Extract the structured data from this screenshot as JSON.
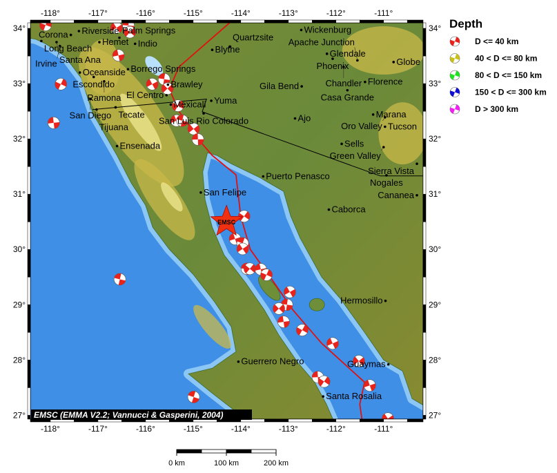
{
  "map": {
    "lon_range": [
      -118.42,
      -110.17
    ],
    "lat_range": [
      26.93,
      34.1
    ],
    "lon_ticks": [
      "-118°",
      "-117°",
      "-116°",
      "-115°",
      "-114°",
      "-113°",
      "-112°",
      "-111°"
    ],
    "lon_tick_values": [
      -118,
      -117,
      -116,
      -115,
      -114,
      -113,
      -112,
      -111
    ],
    "lat_ticks": [
      "34°",
      "33°",
      "32°",
      "31°",
      "30°",
      "29°",
      "28°",
      "27°"
    ],
    "lat_tick_values": [
      34,
      33,
      32,
      31,
      30,
      29,
      28,
      27
    ],
    "colors": {
      "deep_sea": "#3f8fe6",
      "shelf": "#8cc6f5",
      "land": "#6f8e3a",
      "highland": "#c9b84a",
      "peak": "#f0e890",
      "quake": "#e8231c",
      "star": "#f03010"
    },
    "credit": "EMSC (EMMA V2.2; Vannucci & Gasperini, 2004)",
    "event_label": "EMSC",
    "event": {
      "lon": -114.3,
      "lat": 30.5
    }
  },
  "cities": [
    {
      "name": "Riverside",
      "lon": -117.4,
      "lat": 33.95
    },
    {
      "name": "Corona",
      "lon": -117.57,
      "lat": 33.88
    },
    {
      "name": "Long Beach",
      "lon": -118.19,
      "lat": 33.77
    },
    {
      "name": "Santa Ana",
      "lon": -117.87,
      "lat": 33.75
    },
    {
      "name": "Hemet",
      "lon": -116.97,
      "lat": 33.75
    },
    {
      "name": "Irvine",
      "lon": -117.8,
      "lat": 33.68
    },
    {
      "name": "Palm Springs",
      "lon": -116.55,
      "lat": 33.83
    },
    {
      "name": "Indio",
      "lon": -116.22,
      "lat": 33.72
    },
    {
      "name": "Blythe",
      "lon": -114.6,
      "lat": 33.61
    },
    {
      "name": "Quartzsite",
      "lon": -114.23,
      "lat": 33.67
    },
    {
      "name": "Wickenburg",
      "lon": -112.73,
      "lat": 33.97
    },
    {
      "name": "Glendale",
      "lon": -112.19,
      "lat": 33.54
    },
    {
      "name": "Phoenix",
      "lon": -112.07,
      "lat": 33.45
    },
    {
      "name": "Apache Junction",
      "lon": -111.55,
      "lat": 33.42
    },
    {
      "name": "Globe",
      "lon": -110.79,
      "lat": 33.39
    },
    {
      "name": "Chandler",
      "lon": -111.84,
      "lat": 33.3
    },
    {
      "name": "Gila Bend",
      "lon": -112.72,
      "lat": 32.95
    },
    {
      "name": "Florence",
      "lon": -111.39,
      "lat": 33.03
    },
    {
      "name": "Casa Grande",
      "lon": -111.76,
      "lat": 32.88
    },
    {
      "name": "Ajo",
      "lon": -112.86,
      "lat": 32.37
    },
    {
      "name": "Marana",
      "lon": -111.22,
      "lat": 32.44
    },
    {
      "name": "Oro Valley",
      "lon": -110.97,
      "lat": 32.39
    },
    {
      "name": "Tucson",
      "lon": -110.97,
      "lat": 32.22
    },
    {
      "name": "Sells",
      "lon": -111.88,
      "lat": 31.91
    },
    {
      "name": "Green Valley",
      "lon": -111.0,
      "lat": 31.85
    },
    {
      "name": "Sierra Vista",
      "lon": -110.3,
      "lat": 31.55
    },
    {
      "name": "Nogales",
      "lon": -110.94,
      "lat": 31.34
    },
    {
      "name": "Cananea",
      "lon": -110.3,
      "lat": 30.98
    },
    {
      "name": "Oceanside",
      "lon": -117.38,
      "lat": 33.2
    },
    {
      "name": "Escondido",
      "lon": -117.09,
      "lat": 33.12
    },
    {
      "name": "Ramona",
      "lon": -116.87,
      "lat": 33.04
    },
    {
      "name": "Borrego Springs",
      "lon": -116.37,
      "lat": 33.26
    },
    {
      "name": "Brawley",
      "lon": -115.53,
      "lat": 32.98
    },
    {
      "name": "El Centro",
      "lon": -115.56,
      "lat": 32.79
    },
    {
      "name": "San Diego",
      "lon": -117.16,
      "lat": 32.72
    },
    {
      "name": "Tecate",
      "lon": -116.63,
      "lat": 32.57
    },
    {
      "name": "Tijuana",
      "lon": -117.03,
      "lat": 32.53
    },
    {
      "name": "Mexicali",
      "lon": -115.47,
      "lat": 32.62
    },
    {
      "name": "Yuma",
      "lon": -114.62,
      "lat": 32.69
    },
    {
      "name": "San Luis Rio Colorado",
      "lon": -114.78,
      "lat": 32.46
    },
    {
      "name": "Ensenada",
      "lon": -116.6,
      "lat": 31.87
    },
    {
      "name": "Puerto Penasco",
      "lon": -113.53,
      "lat": 31.32
    },
    {
      "name": "San Felipe",
      "lon": -114.84,
      "lat": 31.03
    },
    {
      "name": "Caborca",
      "lon": -112.15,
      "lat": 30.72
    },
    {
      "name": "Hermosillo",
      "lon": -110.96,
      "lat": 29.07
    },
    {
      "name": "Guerrero Negro",
      "lon": -114.05,
      "lat": 27.97
    },
    {
      "name": "Santa Rosalia",
      "lon": -112.27,
      "lat": 27.34
    },
    {
      "name": "Guaymas",
      "lon": -110.9,
      "lat": 27.92
    }
  ],
  "earthquakes": [
    [
      -118.1,
      34.06
    ],
    [
      -116.61,
      34.01
    ],
    [
      -116.36,
      34.05
    ],
    [
      -116.33,
      33.93
    ],
    [
      -116.57,
      33.51
    ],
    [
      -117.78,
      32.99
    ],
    [
      -115.86,
      32.99
    ],
    [
      -115.61,
      33.08
    ],
    [
      -115.54,
      32.91
    ],
    [
      -117.93,
      32.29
    ],
    [
      -115.32,
      32.6
    ],
    [
      -115.35,
      32.33
    ],
    [
      -115.23,
      32.33
    ],
    [
      -114.99,
      32.18
    ],
    [
      -114.9,
      31.99
    ],
    [
      -113.93,
      30.6
    ],
    [
      -114.12,
      30.19
    ],
    [
      -113.96,
      30.11
    ],
    [
      -113.96,
      30.01
    ],
    [
      -113.87,
      29.65
    ],
    [
      -113.81,
      29.65
    ],
    [
      -113.58,
      29.64
    ],
    [
      -113.46,
      29.54
    ],
    [
      -112.97,
      29.23
    ],
    [
      -113.03,
      29.0
    ],
    [
      -113.2,
      28.93
    ],
    [
      -113.1,
      28.69
    ],
    [
      -112.71,
      28.54
    ],
    [
      -112.07,
      28.3
    ],
    [
      -116.54,
      29.46
    ],
    [
      -111.52,
      27.98
    ],
    [
      -112.38,
      27.69
    ],
    [
      -112.25,
      27.61
    ],
    [
      -111.29,
      27.54
    ],
    [
      -114.99,
      27.33
    ],
    [
      -110.91,
      26.94
    ]
  ],
  "fault": [
    [
      -114.1,
      34.2
    ],
    [
      -115.3,
      33.3
    ],
    [
      -115.5,
      32.9
    ],
    [
      -115.3,
      32.5
    ],
    [
      -114.8,
      31.9
    ],
    [
      -114.6,
      31.7
    ],
    [
      -114.1,
      31.35
    ],
    [
      -114.0,
      30.6
    ],
    [
      -113.8,
      30.0
    ],
    [
      -113.3,
      29.4
    ],
    [
      -112.9,
      28.9
    ],
    [
      -112.3,
      28.3
    ],
    [
      -111.4,
      27.6
    ],
    [
      -111.5,
      27.2
    ],
    [
      -111.45,
      26.9
    ]
  ],
  "border": [
    [
      -117.12,
      32.53
    ],
    [
      -114.72,
      32.72
    ],
    [
      -114.81,
      32.49
    ],
    [
      -111.07,
      31.33
    ],
    [
      -110.0,
      31.33
    ]
  ],
  "legend": {
    "title": "Depth",
    "items": [
      {
        "label": "D <= 40 km",
        "color": "#e8231c"
      },
      {
        "label": "40 < D <= 80 km",
        "color": "#c8c020"
      },
      {
        "label": "80 < D <= 150 km",
        "color": "#20e020"
      },
      {
        "label": "150 < D <= 300 km",
        "color": "#1010d0"
      },
      {
        "label": "D > 300 km",
        "color": "#f020f0"
      }
    ]
  },
  "scale_bar": {
    "labels": [
      "0 km",
      "100 km",
      "200 km"
    ]
  }
}
